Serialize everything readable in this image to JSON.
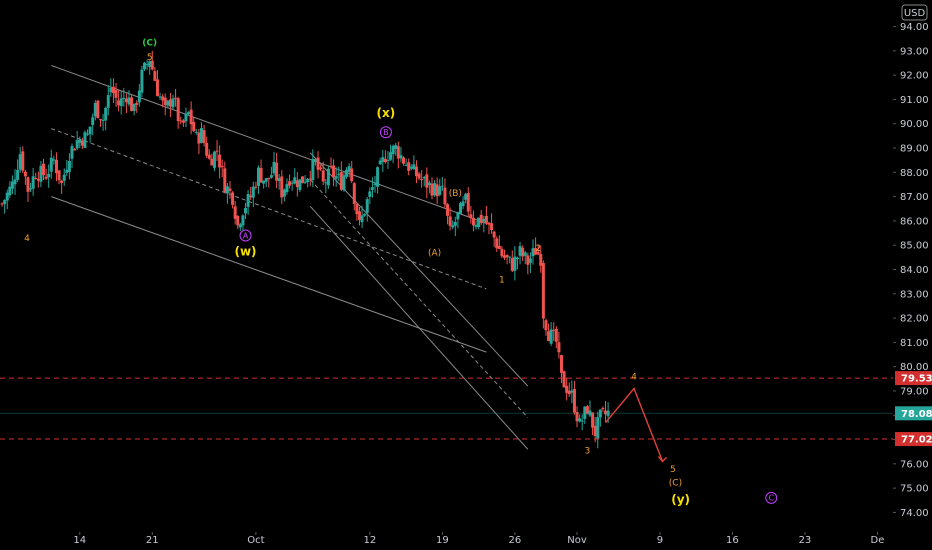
{
  "chart_data": {
    "type": "candlestick",
    "currency_badge": "USD",
    "ylim": [
      73.4,
      94.6
    ],
    "y_ticks": [
      "94.00",
      "93.00",
      "92.00",
      "91.00",
      "90.00",
      "89.00",
      "88.00",
      "87.00",
      "86.00",
      "85.00",
      "84.00",
      "83.00",
      "82.00",
      "81.00",
      "80.00",
      "79.00",
      "78.00",
      "77.00",
      "76.00",
      "75.00",
      "74.00"
    ],
    "x_ticks": [
      {
        "label": "14",
        "day": 14
      },
      {
        "label": "21",
        "day": 21
      },
      {
        "label": "Oct",
        "day": 31
      },
      {
        "label": "12",
        "day": 42
      },
      {
        "label": "19",
        "day": 49
      },
      {
        "label": "26",
        "day": 56
      },
      {
        "label": "Nov",
        "day": 62
      },
      {
        "label": "9",
        "day": 70
      },
      {
        "label": "16",
        "day": 77
      },
      {
        "label": "23",
        "day": 84
      },
      {
        "label": "De",
        "day": 91
      }
    ],
    "x_range_days": [
      6.3,
      92.5
    ],
    "price_path": [
      [
        6.5,
        86.7
      ],
      [
        8.5,
        87.5
      ],
      [
        10,
        88.8
      ],
      [
        11.5,
        87.3
      ],
      [
        13,
        88.0
      ],
      [
        15,
        87.9
      ],
      [
        16.5,
        88.5
      ],
      [
        18,
        87.5
      ],
      [
        19.5,
        88.8
      ],
      [
        21,
        89.3
      ],
      [
        23,
        89.5
      ],
      [
        24.5,
        90.7
      ],
      [
        26,
        90.2
      ],
      [
        27.5,
        91.5
      ],
      [
        29,
        90.8
      ],
      [
        30.5,
        91.2
      ],
      [
        32,
        90.5
      ],
      [
        33.5,
        92.0
      ],
      [
        35,
        92.7
      ],
      [
        36.5,
        91.4
      ],
      [
        38,
        90.5
      ],
      [
        39.5,
        91.2
      ],
      [
        41,
        89.8
      ],
      [
        42.5,
        90.4
      ],
      [
        44,
        89.4
      ],
      [
        45,
        89.6
      ],
      [
        46.5,
        88.5
      ],
      [
        48,
        88.9
      ],
      [
        49.5,
        87.5
      ],
      [
        51,
        87.0
      ],
      [
        52,
        85.8
      ],
      [
        53,
        86.5
      ],
      [
        54.5,
        87.0
      ],
      [
        56,
        88.0
      ],
      [
        57.5,
        87.6
      ],
      [
        59,
        88.1
      ],
      [
        60.5,
        87.2
      ],
      [
        62,
        87.8
      ],
      [
        64,
        87.6
      ],
      [
        65.5,
        87.9
      ],
      [
        67,
        88.4
      ],
      [
        68.5,
        87.5
      ],
      [
        70,
        88.0
      ],
      [
        72,
        87.6
      ],
      [
        73.5,
        88.5
      ],
      [
        74.5,
        87.0
      ],
      [
        75.5,
        85.8
      ],
      [
        77,
        86.8
      ],
      [
        78.5,
        87.6
      ],
      [
        80.5,
        88.7
      ],
      [
        82.5,
        89.0
      ],
      [
        84,
        88.5
      ],
      [
        86,
        88.0
      ],
      [
        88,
        87.6
      ],
      [
        90,
        87.3
      ],
      [
        91.5,
        87.2
      ],
      [
        93,
        85.5
      ],
      [
        94.5,
        86.2
      ],
      [
        96,
        86.8
      ],
      [
        97.5,
        86.0
      ],
      [
        99.5,
        86.1
      ],
      [
        101.5,
        85.3
      ],
      [
        103,
        84.6
      ],
      [
        105,
        84.2
      ],
      [
        106.5,
        84.7
      ],
      [
        108,
        84.3
      ],
      [
        109.5,
        84.8
      ],
      [
        110.5,
        84.5
      ],
      [
        111,
        82.2
      ],
      [
        112,
        81.4
      ],
      [
        113.5,
        81.0
      ],
      [
        114.5,
        79.5
      ],
      [
        116.5,
        78.8
      ],
      [
        118,
        77.6
      ],
      [
        119.5,
        78.3
      ],
      [
        121,
        77.3
      ],
      [
        122,
        77.9
      ],
      [
        123.5,
        78.1
      ]
    ],
    "trendlines": [
      {
        "role": "upper-channel",
        "color": "#8a8a8a",
        "dashed": false,
        "from": [
          16,
          92.4
        ],
        "to": [
          100,
          85.9
        ]
      },
      {
        "role": "mid-channel",
        "color": "#8a8a8a",
        "dashed": true,
        "from": [
          16,
          89.8
        ],
        "to": [
          100,
          83.2
        ]
      },
      {
        "role": "lower-channel",
        "color": "#8a8a8a",
        "dashed": false,
        "from": [
          16,
          87.0
        ],
        "to": [
          100,
          80.6
        ]
      },
      {
        "role": "steep-upper",
        "color": "#8a8a8a",
        "dashed": false,
        "from": [
          66,
          88.8
        ],
        "to": [
          108,
          79.2
        ]
      },
      {
        "role": "steep-mid",
        "color": "#8a8a8a",
        "dashed": true,
        "from": [
          66,
          87.7
        ],
        "to": [
          108,
          77.9
        ]
      },
      {
        "role": "steep-lower",
        "color": "#8a8a8a",
        "dashed": false,
        "from": [
          66,
          86.6
        ],
        "to": [
          108,
          76.6
        ]
      }
    ],
    "horizontal_levels": [
      {
        "price": 79.53,
        "label": "79.53",
        "color": "#d32f2f",
        "dashed": true
      },
      {
        "price": 78.08,
        "label": "78.08",
        "color": "#26a69a",
        "dashed": false
      },
      {
        "price": 77.02,
        "label": "77.02",
        "color": "#d32f2f",
        "dashed": true
      }
    ],
    "projection": {
      "color": "#e0403a",
      "points": [
        [
          123,
          77.7
        ],
        [
          128.5,
          79.1
        ],
        [
          134,
          76.1
        ]
      ]
    },
    "wave_labels": [
      {
        "text": "(C)",
        "color": "#2ecc40",
        "circle": false,
        "bold": true,
        "size": 9,
        "day": 35,
        "price": 93.35
      },
      {
        "text": "5",
        "color": "#f0a030",
        "circle": false,
        "bold": false,
        "size": 9,
        "day": 35,
        "price": 92.75
      },
      {
        "text": "4",
        "color": "#f0a030",
        "circle": false,
        "bold": false,
        "size": 9,
        "day": 11.3,
        "price": 85.3
      },
      {
        "text": "A",
        "color": "#c040ff",
        "circle": true,
        "bold": false,
        "size": 8,
        "day": 53.5,
        "price": 85.4
      },
      {
        "text": "(w)",
        "color": "#f5e000",
        "circle": false,
        "bold": true,
        "size": 12,
        "day": 53.5,
        "price": 84.75
      },
      {
        "text": "(x)",
        "color": "#f5e000",
        "circle": false,
        "bold": true,
        "size": 12,
        "day": 80.6,
        "price": 90.45
      },
      {
        "text": "B",
        "color": "#c040ff",
        "circle": true,
        "bold": false,
        "size": 8,
        "day": 80.6,
        "price": 89.65
      },
      {
        "text": "(B)",
        "color": "#f0a030",
        "circle": false,
        "bold": false,
        "size": 9,
        "day": 94,
        "price": 87.15
      },
      {
        "text": "(A)",
        "color": "#f0a030",
        "circle": false,
        "bold": false,
        "size": 9,
        "day": 90,
        "price": 84.7
      },
      {
        "text": "2",
        "color": "#f0a030",
        "circle": false,
        "bold": false,
        "size": 9,
        "day": 110,
        "price": 84.9
      },
      {
        "text": "1",
        "color": "#f0a030",
        "circle": false,
        "bold": false,
        "size": 9,
        "day": 103,
        "price": 83.6
      },
      {
        "text": "4",
        "color": "#f0a030",
        "circle": false,
        "bold": false,
        "size": 9,
        "day": 128.5,
        "price": 79.6
      },
      {
        "text": "3",
        "color": "#f0a030",
        "circle": false,
        "bold": false,
        "size": 9,
        "day": 119.5,
        "price": 76.55
      },
      {
        "text": "5",
        "color": "#f0a030",
        "circle": false,
        "bold": false,
        "size": 9,
        "day": 136,
        "price": 75.8
      },
      {
        "text": "(C)",
        "color": "#f0a030",
        "circle": false,
        "bold": false,
        "size": 9,
        "day": 136.5,
        "price": 75.25
      },
      {
        "text": "(y)",
        "color": "#f5e000",
        "circle": false,
        "bold": true,
        "size": 12,
        "day": 137.5,
        "price": 74.55
      },
      {
        "text": "C",
        "color": "#c040ff",
        "circle": true,
        "bold": false,
        "size": 8,
        "day": 155,
        "price": 74.6
      }
    ],
    "colors": {
      "background": "#000000",
      "up": "#26a69a",
      "down": "#ef5350",
      "axis_text": "#c9ccd3"
    }
  }
}
